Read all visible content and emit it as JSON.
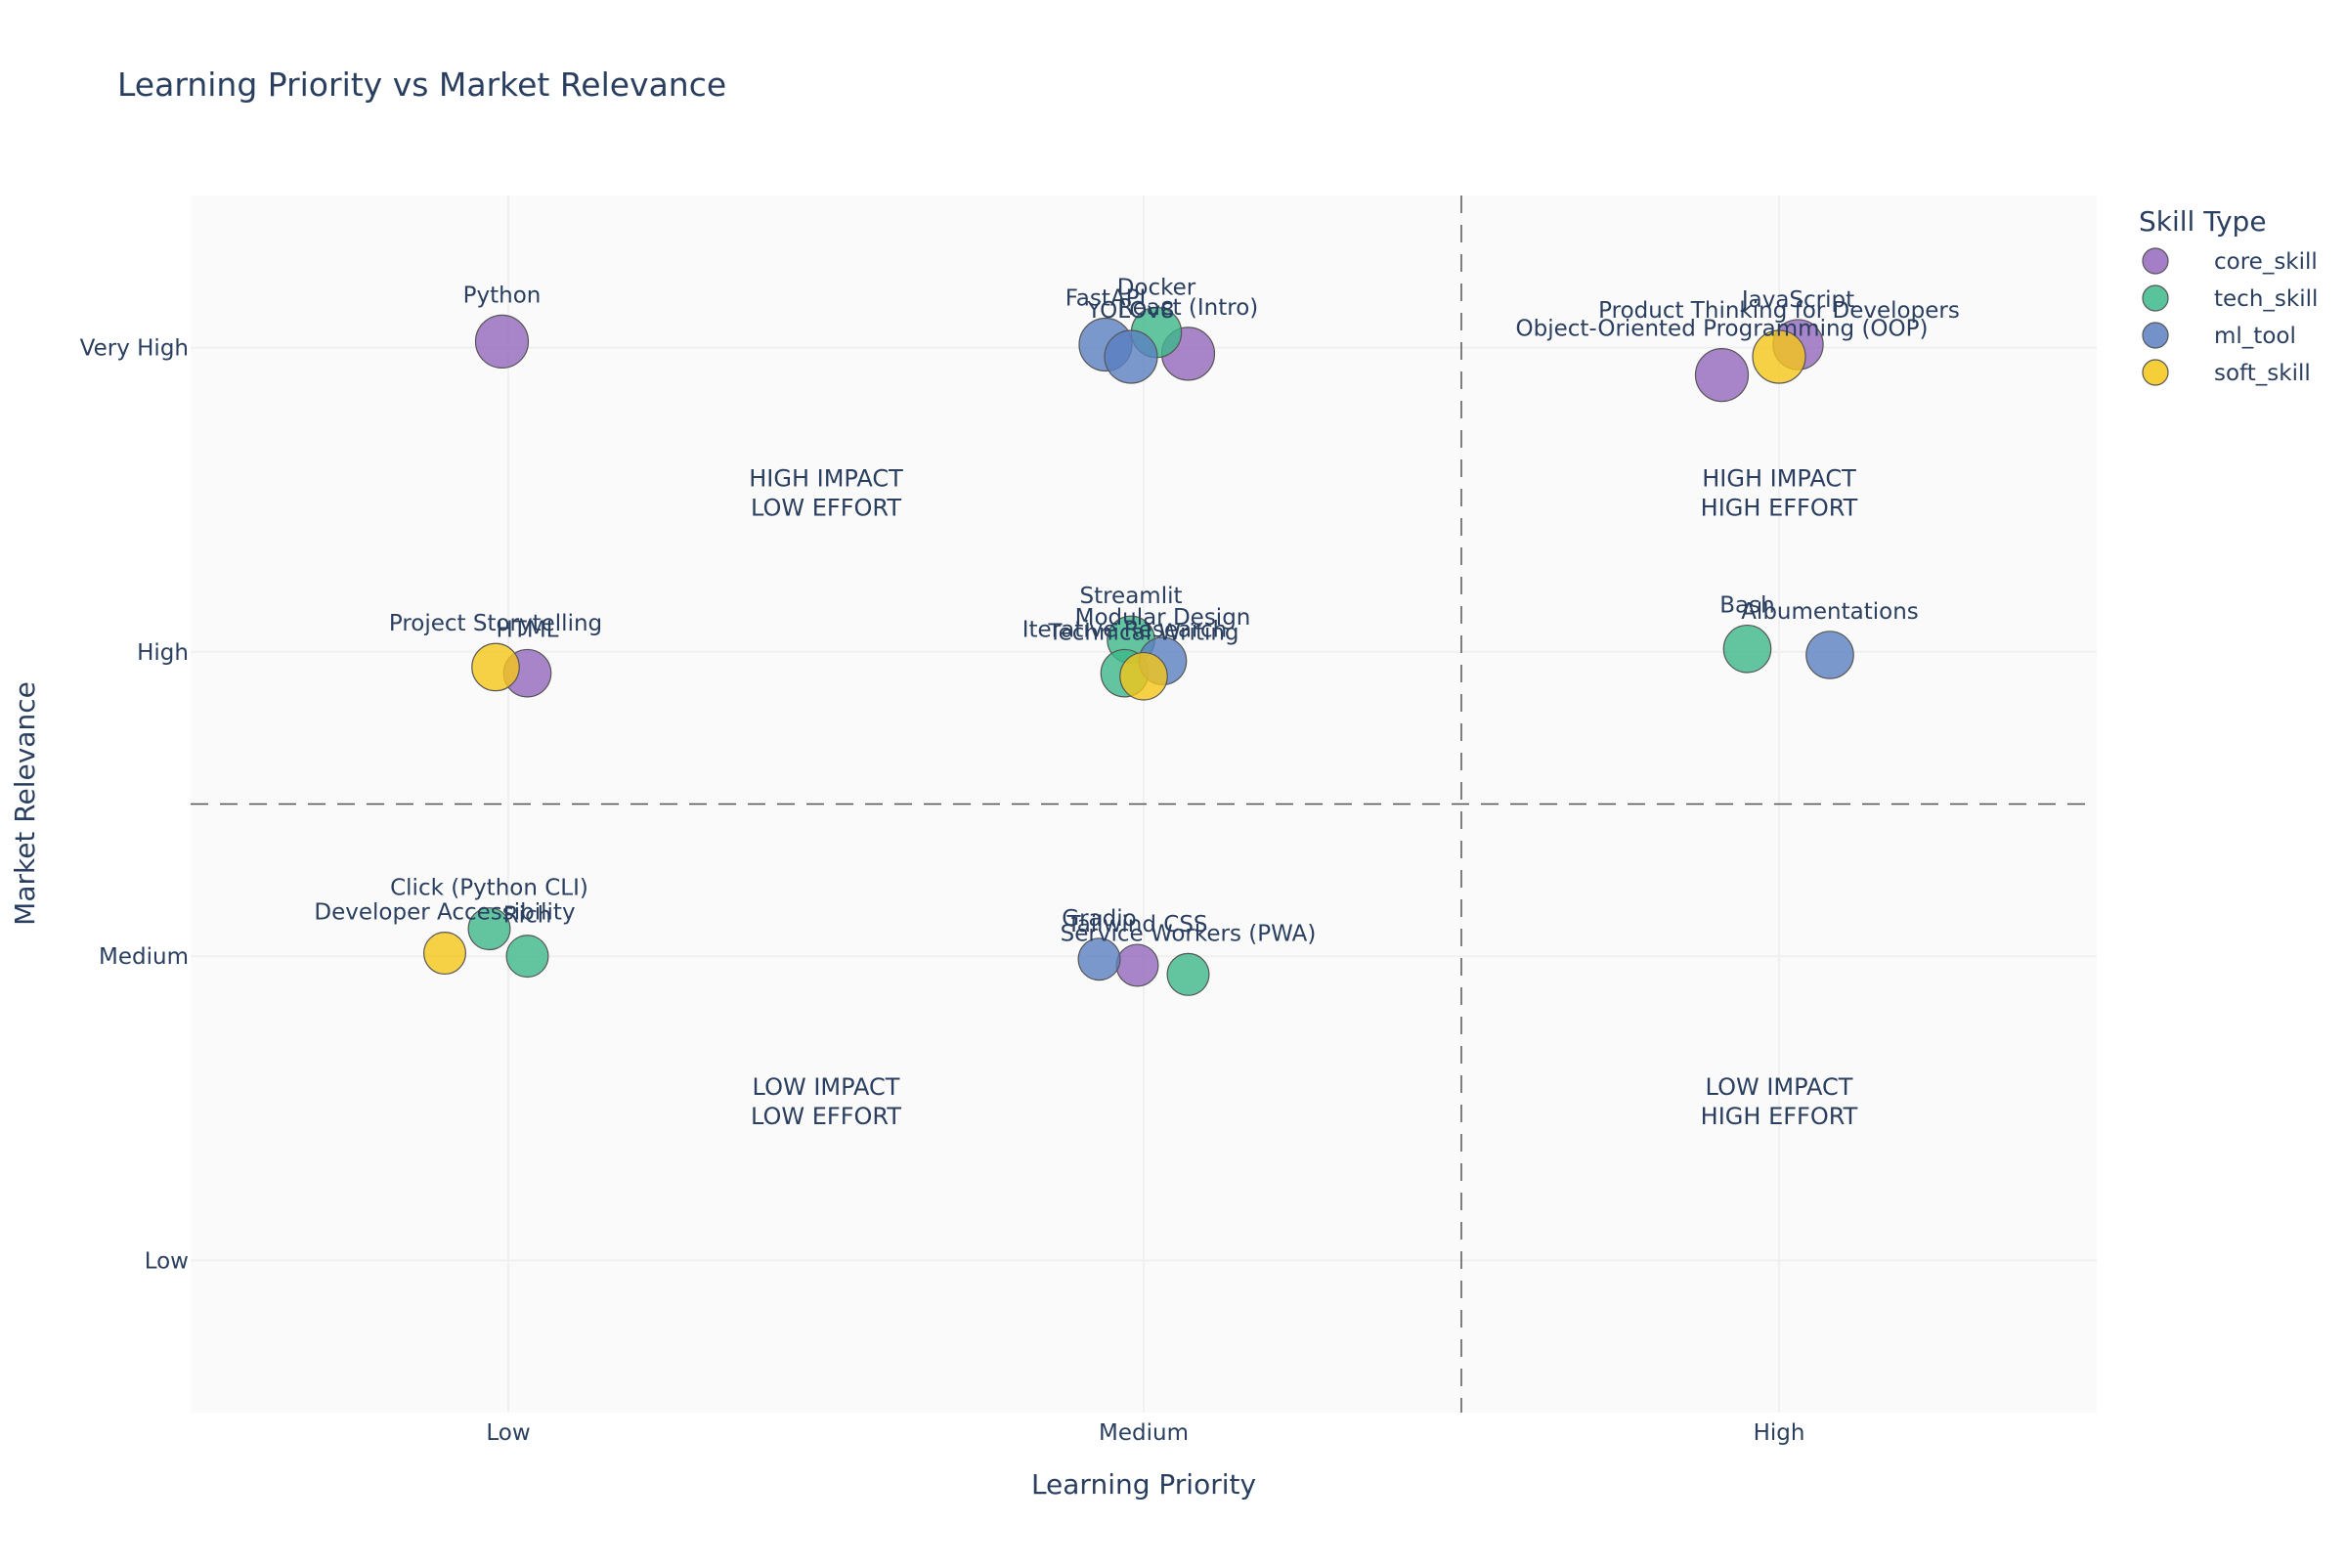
{
  "chart_data": {
    "type": "scatter",
    "title": "Learning Priority vs Market Relevance",
    "xlabel": "Learning Priority",
    "ylabel": "Market Relevance",
    "x_ticks": [
      "Low",
      "Medium",
      "High"
    ],
    "y_ticks": [
      "Low",
      "Medium",
      "High",
      "Very High"
    ],
    "xlim": [
      0.5,
      3.5
    ],
    "ylim": [
      0.5,
      4.5
    ],
    "grid": true,
    "threshold_x": 2.5,
    "threshold_y": 2.5,
    "legend_title": "Skill Type",
    "legend_position": "top-right",
    "series": [
      {
        "name": "core_skill",
        "color": "#9467bd",
        "points": [
          {
            "label": "Python",
            "x": 0.99,
            "y": 4.02,
            "size": 1.0
          },
          {
            "label": "React (Intro)",
            "x": 2.07,
            "y": 3.98,
            "size": 1.0
          },
          {
            "label": "JavaScript",
            "x": 3.03,
            "y": 4.01,
            "size": 0.9
          },
          {
            "label": "Object-Oriented Programming (OOP)",
            "x": 2.91,
            "y": 3.91,
            "size": 1.0
          },
          {
            "label": "HTML",
            "x": 1.03,
            "y": 2.93,
            "size": 0.8
          },
          {
            "label": "Tailwind CSS",
            "x": 1.99,
            "y": 1.97,
            "size": 0.6
          }
        ]
      },
      {
        "name": "tech_skill",
        "color": "#3cb88a",
        "points": [
          {
            "label": "Docker",
            "x": 2.02,
            "y": 4.05,
            "size": 0.9
          },
          {
            "label": "Streamlit",
            "x": 1.98,
            "y": 3.04,
            "size": 0.8
          },
          {
            "label": "Iterative Research",
            "x": 1.97,
            "y": 2.93,
            "size": 0.8
          },
          {
            "label": "Bash",
            "x": 2.95,
            "y": 3.01,
            "size": 0.8
          },
          {
            "label": "Click (Python CLI)",
            "x": 0.97,
            "y": 2.09,
            "size": 0.6
          },
          {
            "label": "Rich",
            "x": 1.03,
            "y": 2.0,
            "size": 0.6
          },
          {
            "label": "Service Workers (PWA)",
            "x": 2.07,
            "y": 1.94,
            "size": 0.6
          }
        ]
      },
      {
        "name": "ml_tool",
        "color": "#5a7fc0",
        "points": [
          {
            "label": "FastAPI",
            "x": 1.94,
            "y": 4.01,
            "size": 1.0
          },
          {
            "label": "YOLOv8",
            "x": 1.98,
            "y": 3.97,
            "size": 1.0
          },
          {
            "label": "Albumentations",
            "x": 3.08,
            "y": 2.99,
            "size": 0.8
          },
          {
            "label": "Modular Design",
            "x": 2.03,
            "y": 2.97,
            "size": 0.8
          },
          {
            "label": "Gradio",
            "x": 1.93,
            "y": 1.99,
            "size": 0.6
          }
        ]
      },
      {
        "name": "soft_skill",
        "color": "#f5c518",
        "points": [
          {
            "label": "Product Thinking for Developers",
            "x": 3.0,
            "y": 3.97,
            "size": 1.0
          },
          {
            "label": "Project Storytelling",
            "x": 0.98,
            "y": 2.95,
            "size": 0.8
          },
          {
            "label": "Technical Writing",
            "x": 2.0,
            "y": 2.92,
            "size": 0.8
          },
          {
            "label": "Developer Accessibility",
            "x": 0.9,
            "y": 2.01,
            "size": 0.6
          }
        ]
      }
    ],
    "quadrant_labels": [
      {
        "text": [
          "HIGH IMPACT",
          "LOW EFFORT"
        ],
        "x": 1.5,
        "y": 3.5
      },
      {
        "text": [
          "HIGH IMPACT",
          "HIGH EFFORT"
        ],
        "x": 3.0,
        "y": 3.5
      },
      {
        "text": [
          "LOW IMPACT",
          "LOW EFFORT"
        ],
        "x": 1.5,
        "y": 1.5
      },
      {
        "text": [
          "LOW IMPACT",
          "HIGH EFFORT"
        ],
        "x": 3.0,
        "y": 1.5
      }
    ]
  }
}
